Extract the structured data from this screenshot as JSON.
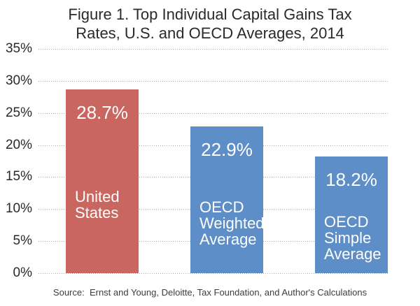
{
  "chart_data": {
    "type": "bar",
    "title": "Figure 1. Top Individual Capital Gains Tax Rates, U.S. and OECD Averages, 2014",
    "title_lines": [
      "Figure 1. Top Individual Capital Gains Tax",
      "Rates, U.S. and OECD Averages, 2014"
    ],
    "categories": [
      "United States",
      "OECD Weighted Average",
      "OECD Simple Average"
    ],
    "values": [
      28.7,
      22.9,
      18.2
    ],
    "value_labels": [
      "28.7%",
      "22.9%",
      "18.2%"
    ],
    "bars": [
      {
        "id": "united-states",
        "name_lines": [
          "United",
          "States"
        ],
        "value": 28.7,
        "label": "28.7%",
        "color": "#c8665f"
      },
      {
        "id": "oecd-weighted-average",
        "name_lines": [
          "OECD",
          "Weighted",
          "Average"
        ],
        "value": 22.9,
        "label": "22.9%",
        "color": "#5d8ec7"
      },
      {
        "id": "oecd-simple-average",
        "name_lines": [
          "OECD",
          "Simple",
          "Average"
        ],
        "value": 18.2,
        "label": "18.2%",
        "color": "#5d8ec7"
      }
    ],
    "yticks": [
      {
        "value": 35,
        "label": "35%"
      },
      {
        "value": 30,
        "label": "30%"
      },
      {
        "value": 25,
        "label": "25%"
      },
      {
        "value": 20,
        "label": "20%"
      },
      {
        "value": 15,
        "label": "15%"
      },
      {
        "value": 10,
        "label": "10%"
      },
      {
        "value": 5,
        "label": "5%"
      },
      {
        "value": 0,
        "label": "0%"
      }
    ],
    "ylim": [
      0,
      35
    ],
    "grid": "dotted-horizontal",
    "legend_position": "none",
    "xlabel": "",
    "ylabel": "",
    "source": "Source:  Ernst and Young, Deloitte, Tax Foundation, and Author's Calculations",
    "colors": {
      "us_bar": "#c8665f",
      "oecd_bar": "#5d8ec7",
      "gridline": "#a9a9a9",
      "text": "#2a2a2a",
      "bar_label": "#ffffff",
      "background": "#ffffff"
    }
  }
}
